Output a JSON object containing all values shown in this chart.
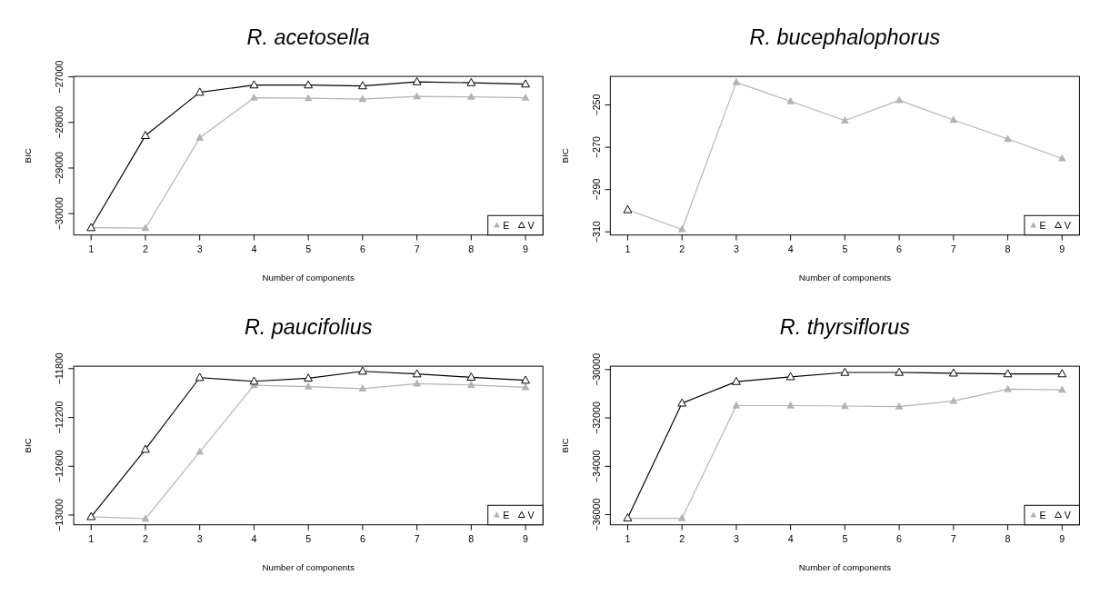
{
  "chart_data": [
    {
      "type": "line",
      "title": "R. acetosella",
      "xlabel": "Number of components",
      "ylabel": "BIC",
      "x": [
        1,
        2,
        3,
        4,
        5,
        6,
        7,
        8,
        9
      ],
      "xlim": [
        0.68,
        9.32
      ],
      "xticks": [
        1,
        2,
        3,
        4,
        5,
        6,
        7,
        8,
        9
      ],
      "ylim": [
        -30470,
        -26990
      ],
      "yticks": [
        -30000,
        -29000,
        -28000,
        -27000
      ],
      "marker": "triangle",
      "legend": "bottom right",
      "series": [
        {
          "name": "E",
          "color": "#b3b3b3",
          "values": [
            -30310,
            -30320,
            -28340,
            -27460,
            -27470,
            -27490,
            -27430,
            -27440,
            -27460
          ]
        },
        {
          "name": "V",
          "color": "#000000",
          "values": [
            -30310,
            -28290,
            -27340,
            -27180,
            -27180,
            -27200,
            -27110,
            -27130,
            -27160
          ]
        }
      ]
    },
    {
      "type": "line",
      "title": "R. bucephalophorus",
      "xlabel": "Number of components",
      "ylabel": "BIC",
      "x": [
        1,
        2,
        3,
        4,
        5,
        6,
        7,
        8,
        9
      ],
      "xlim": [
        0.68,
        9.32
      ],
      "xticks": [
        1,
        2,
        3,
        4,
        5,
        6,
        7,
        8,
        9
      ],
      "ylim": [
        -311.5,
        -236.5
      ],
      "yticks": [
        -310,
        -290,
        -270,
        -250
      ],
      "marker": "triangle",
      "legend": "bottom right",
      "series": [
        {
          "name": "E",
          "color": "#b3b3b3",
          "values": [
            -299.6,
            -308.8,
            -239.3,
            -248.3,
            -257.4,
            -247.8,
            -257.1,
            -266.1,
            -275.3
          ]
        },
        {
          "name": "V",
          "color": "#000000",
          "values": [
            -299.6,
            null,
            null,
            null,
            null,
            null,
            null,
            null,
            null
          ]
        }
      ]
    },
    {
      "type": "line",
      "title": "R. paucifolius",
      "xlabel": "Number of components",
      "ylabel": "BIC",
      "x": [
        1,
        2,
        3,
        4,
        5,
        6,
        7,
        8,
        9
      ],
      "xlim": [
        0.68,
        9.32
      ],
      "xticks": [
        1,
        2,
        3,
        4,
        5,
        6,
        7,
        8,
        9
      ],
      "ylim": [
        -13080,
        -11780
      ],
      "yticks": [
        -13000,
        -12600,
        -12200,
        -11800
      ],
      "marker": "triangle",
      "legend": "bottom right",
      "series": [
        {
          "name": "E",
          "color": "#b3b3b3",
          "values": [
            -13014,
            -13030,
            -12482,
            -11937,
            -11948,
            -11964,
            -11923,
            -11934,
            -11953
          ]
        },
        {
          "name": "V",
          "color": "#000000",
          "values": [
            -13014,
            -12462,
            -11874,
            -11904,
            -11879,
            -11822,
            -11844,
            -11871,
            -11896
          ]
        }
      ]
    },
    {
      "type": "line",
      "title": "R. thyrsiflorus",
      "xlabel": "Number of components",
      "ylabel": "BIC",
      "x": [
        1,
        2,
        3,
        4,
        5,
        6,
        7,
        8,
        9
      ],
      "xlim": [
        0.68,
        9.32
      ],
      "xticks": [
        1,
        2,
        3,
        4,
        5,
        6,
        7,
        8,
        9
      ],
      "ylim": [
        -36420,
        -29860
      ],
      "yticks": [
        -36000,
        -34000,
        -32000,
        -30000
      ],
      "marker": "triangle",
      "legend": "bottom right",
      "series": [
        {
          "name": "E",
          "color": "#b3b3b3",
          "values": [
            -36150,
            -36150,
            -31490,
            -31490,
            -31510,
            -31530,
            -31300,
            -30810,
            -30840
          ]
        },
        {
          "name": "V",
          "color": "#000000",
          "values": [
            -36140,
            -31390,
            -30500,
            -30300,
            -30120,
            -30120,
            -30150,
            -30180,
            -30180
          ]
        }
      ]
    }
  ]
}
